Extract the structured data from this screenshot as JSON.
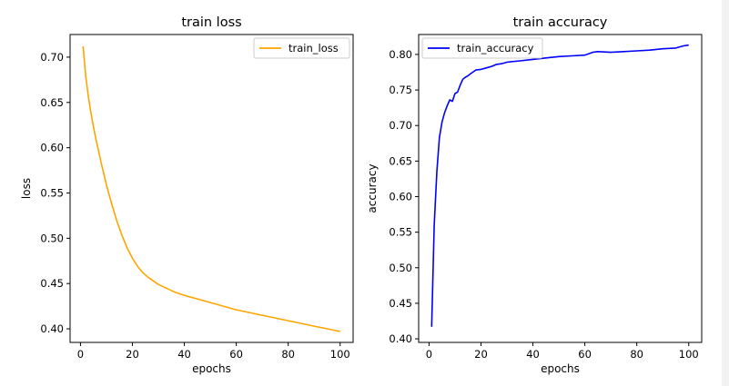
{
  "chart_data": [
    {
      "type": "line",
      "title": "train loss",
      "xlabel": "epochs",
      "ylabel": "loss",
      "xlim": [
        -4,
        105
      ],
      "ylim": [
        0.385,
        0.725
      ],
      "xticks": [
        0,
        20,
        40,
        60,
        80,
        100
      ],
      "xtick_labels": [
        "0",
        "20",
        "40",
        "60",
        "80",
        "100"
      ],
      "yticks": [
        0.4,
        0.45,
        0.5,
        0.55,
        0.6,
        0.65,
        0.7
      ],
      "ytick_labels": [
        "0.40",
        "0.45",
        "0.50",
        "0.55",
        "0.60",
        "0.65",
        "0.70"
      ],
      "legend_position": "top-right",
      "grid": false,
      "series": [
        {
          "name": "train_loss",
          "color": "#ffa500",
          "x": [
            1,
            2,
            3,
            4,
            5,
            6,
            7,
            8,
            9,
            10,
            12,
            14,
            16,
            18,
            20,
            22,
            24,
            26,
            28,
            30,
            33,
            36,
            40,
            45,
            50,
            55,
            60,
            65,
            70,
            75,
            80,
            85,
            90,
            95,
            100
          ],
          "y": [
            0.712,
            0.68,
            0.657,
            0.639,
            0.623,
            0.609,
            0.596,
            0.583,
            0.571,
            0.559,
            0.538,
            0.519,
            0.503,
            0.489,
            0.478,
            0.469,
            0.462,
            0.457,
            0.453,
            0.449,
            0.445,
            0.441,
            0.437,
            0.433,
            0.429,
            0.425,
            0.421,
            0.418,
            0.415,
            0.412,
            0.409,
            0.406,
            0.403,
            0.4,
            0.397
          ]
        }
      ]
    },
    {
      "type": "line",
      "title": "train accuracy",
      "xlabel": "epochs",
      "ylabel": "accuracy",
      "xlim": [
        -4,
        105
      ],
      "ylim": [
        0.395,
        0.828
      ],
      "xticks": [
        0,
        20,
        40,
        60,
        80,
        100
      ],
      "xtick_labels": [
        "0",
        "20",
        "40",
        "60",
        "80",
        "100"
      ],
      "yticks": [
        0.4,
        0.45,
        0.5,
        0.55,
        0.6,
        0.65,
        0.7,
        0.75,
        0.8
      ],
      "ytick_labels": [
        "0.40",
        "0.45",
        "0.50",
        "0.55",
        "0.60",
        "0.65",
        "0.70",
        "0.75",
        "0.80"
      ],
      "legend_position": "top-left",
      "grid": false,
      "series": [
        {
          "name": "train_accuracy",
          "color": "#0000ff",
          "x": [
            1,
            2,
            3,
            4,
            5,
            6,
            7,
            8,
            9,
            10,
            11,
            12,
            13,
            14,
            15,
            16,
            18,
            20,
            22,
            24,
            26,
            28,
            30,
            32,
            35,
            40,
            45,
            50,
            55,
            60,
            63,
            65,
            70,
            75,
            80,
            85,
            90,
            95,
            98,
            100
          ],
          "y": [
            0.417,
            0.56,
            0.635,
            0.683,
            0.705,
            0.718,
            0.728,
            0.736,
            0.734,
            0.745,
            0.747,
            0.757,
            0.765,
            0.768,
            0.77,
            0.773,
            0.778,
            0.779,
            0.781,
            0.783,
            0.786,
            0.787,
            0.789,
            0.79,
            0.791,
            0.793,
            0.795,
            0.797,
            0.798,
            0.799,
            0.803,
            0.804,
            0.803,
            0.804,
            0.805,
            0.806,
            0.808,
            0.809,
            0.812,
            0.813
          ]
        }
      ]
    }
  ]
}
